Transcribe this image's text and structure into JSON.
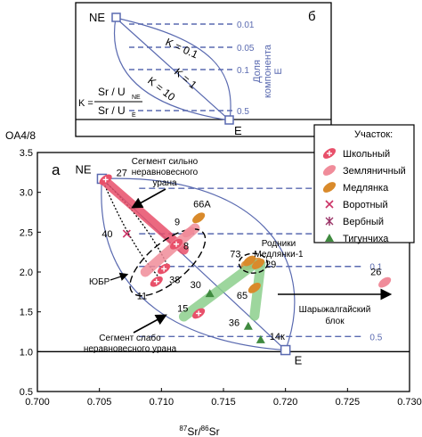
{
  "chart_data": [
    {
      "type": "scatter",
      "id": "main",
      "panel_label": "а",
      "ylabel": "OA4/8",
      "xlabel_parts": {
        "sup1": "87",
        "mid": "Sr/",
        "sup2": "86",
        "end": "Sr"
      },
      "xlim": [
        0.7,
        0.73
      ],
      "ylim": [
        0.5,
        3.5
      ],
      "xticks": [
        "0.700",
        "0.705",
        "0.710",
        "0.715",
        "0.720",
        "0.725",
        "0.730"
      ],
      "xtick_values": [
        0.7,
        0.705,
        0.71,
        0.715,
        0.72,
        0.725,
        0.73
      ],
      "yticks": [
        "0.5",
        "1.0",
        "1.5",
        "2.0",
        "2.5",
        "3.0",
        "3.5"
      ],
      "ytick_values": [
        0.5,
        1.0,
        1.5,
        2.0,
        2.5,
        3.0,
        3.5
      ],
      "baseline_y": 1.0,
      "endmembers": {
        "NE": {
          "label": "NE",
          "x": 0.7052,
          "y": 3.17
        },
        "E": {
          "label": "E",
          "x": 0.72,
          "y": 1.02
        }
      },
      "fraction_lines": [
        {
          "label": "0.01",
          "y": 3.05
        },
        {
          "label": "0.05",
          "y": 2.48
        },
        {
          "label": "0.1",
          "y": 2.07
        },
        {
          "label": "0.5",
          "y": 1.19
        }
      ],
      "legend": {
        "title": "Участок:",
        "placement": "top-right",
        "entries": [
          {
            "name": "Школьный",
            "marker": "plus-ellipse",
            "color": "#e8506a"
          },
          {
            "name": "Земляничный",
            "marker": "ellipse",
            "color": "#f08c9a"
          },
          {
            "name": "Медлянка",
            "marker": "ellipse",
            "color": "#d98a2b"
          },
          {
            "name": "Воротный",
            "marker": "x",
            "color": "#cc3366"
          },
          {
            "name": "Вербный",
            "marker": "star",
            "color": "#993366"
          },
          {
            "name": "Тигунчиха",
            "marker": "triangle",
            "color": "#3f8a3f"
          }
        ]
      },
      "bands": [
        {
          "name": "Школьный",
          "color": "#e8506a",
          "points": [
            [
              0.7053,
              3.16
            ],
            [
              0.7118,
              2.28
            ]
          ]
        },
        {
          "name": "Земляничный",
          "color": "#f08c9a",
          "points": [
            [
              0.7087,
              2.0
            ],
            [
              0.7127,
              2.55
            ]
          ]
        },
        {
          "name": "Медлянка",
          "color": "#d98a2b",
          "points": [
            [
              0.7168,
              2.08
            ],
            [
              0.7178,
              2.12
            ]
          ]
        },
        {
          "name": "Тигунчиха",
          "color": "#8ccf8c",
          "points": [
            [
              0.7118,
              1.44
            ],
            [
              0.7175,
              2.1
            ]
          ]
        },
        {
          "name": "Тигунчиха",
          "color": "#8ccf8c",
          "points": [
            [
              0.7175,
              1.45
            ],
            [
              0.718,
              2.1
            ]
          ]
        }
      ],
      "points": [
        {
          "site": "Школьный",
          "x": 0.7055,
          "y": 3.16,
          "label": "27"
        },
        {
          "site": "Воротный",
          "x": 0.7072,
          "y": 2.48,
          "label": "40"
        },
        {
          "site": "Школьный",
          "x": 0.7096,
          "y": 1.88,
          "label": "11"
        },
        {
          "site": "Школьный",
          "x": 0.7102,
          "y": 2.04,
          "label": "38"
        },
        {
          "site": "Школьный",
          "x": 0.7112,
          "y": 2.35,
          "label": "8"
        },
        {
          "site": "Земляничный",
          "x": 0.7122,
          "y": 2.5,
          "label": "9"
        },
        {
          "site": "Медлянка",
          "x": 0.713,
          "y": 2.68,
          "label": "66А"
        },
        {
          "site": "Тигунчиха",
          "x": 0.7139,
          "y": 1.73,
          "label": "30"
        },
        {
          "site": "Школьный",
          "x": 0.713,
          "y": 1.48,
          "label": "15"
        },
        {
          "site": "Медлянка",
          "x": 0.7171,
          "y": 2.14,
          "label": "73"
        },
        {
          "site": "Медлянка",
          "x": 0.7178,
          "y": 2.1,
          "label": "29"
        },
        {
          "site": "Медлянка",
          "x": 0.7175,
          "y": 1.8,
          "label": "65"
        },
        {
          "site": "Тигунчиха",
          "x": 0.717,
          "y": 1.32,
          "label": "36"
        },
        {
          "site": "Тигунчиха",
          "x": 0.718,
          "y": 1.15,
          "label": "14к"
        },
        {
          "site": "Земляничный",
          "x": 0.728,
          "y": 1.87,
          "label": "26"
        }
      ],
      "annotations": {
        "strong": [
          "Сегмент сильно",
          "неравновесного",
          "урана"
        ],
        "weak": [
          "Сегмент слабо",
          "неравновесного урана"
        ],
        "rodniki": [
          "Родники",
          "Медлянки-1"
        ],
        "shary": [
          "Шарыжалгайский",
          "блок"
        ],
        "ubr": "ЮБР"
      }
    },
    {
      "type": "diagram",
      "id": "inset",
      "panel_label": "б",
      "endmembers": {
        "NE": "NE",
        "E": "E"
      },
      "curves": [
        "K = 0.1",
        "K = 1",
        "K = 10"
      ],
      "fraction_labels": [
        "0.01",
        "0.05",
        "0.1",
        "0.5"
      ],
      "side_label": [
        "Доля",
        "компонента",
        "Е"
      ],
      "formula": {
        "k": "K =",
        "num": "Sr / U",
        "num_sub": "NE",
        "den": "Sr / U",
        "den_sub": "E"
      }
    }
  ]
}
